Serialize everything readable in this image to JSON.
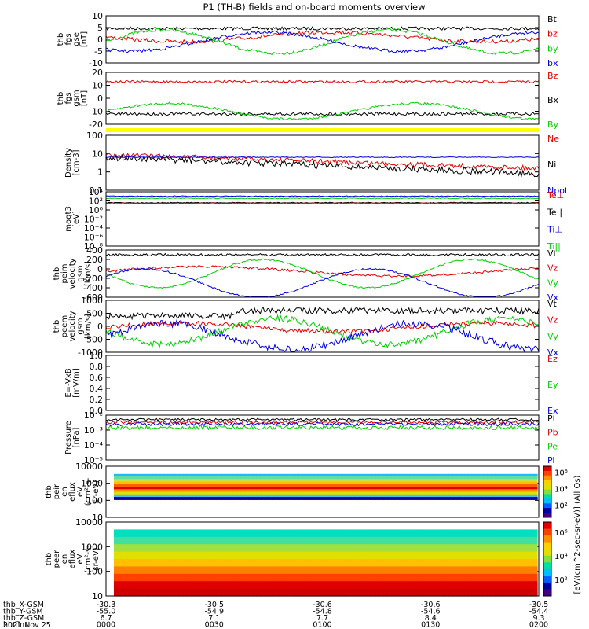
{
  "title": "P1 (TH-B) fields and on-board moments overview",
  "colors": {
    "black": "#000000",
    "red": "#e00000",
    "green": "#00d000",
    "blue": "#0000e0",
    "yellow": "#ffff00"
  },
  "chart_data": [
    {
      "type": "line",
      "ylabel": [
        "thb",
        "fgs",
        "gse",
        "[nT]"
      ],
      "yticks": [
        "10",
        "5",
        "0",
        "-5",
        "-10"
      ],
      "ylim": [
        -10,
        10
      ],
      "series": [
        {
          "name": "Bt",
          "color": "black"
        },
        {
          "name": "bz",
          "color": "red"
        },
        {
          "name": "by",
          "color": "green"
        },
        {
          "name": "bx",
          "color": "blue"
        }
      ]
    },
    {
      "type": "line",
      "ylabel": [
        "thb",
        "fgs",
        "gsm",
        "[nT]"
      ],
      "yticks": [
        "20",
        "10",
        "0",
        "-10",
        "-20"
      ],
      "ylim": [
        -20,
        20
      ],
      "series": [
        {
          "name": "Bz",
          "color": "red"
        },
        {
          "name": "Bx",
          "color": "black"
        },
        {
          "name": "By",
          "color": "green"
        }
      ]
    },
    {
      "type": "line",
      "ylabel": [
        "Density",
        "[cm-3]"
      ],
      "yticks": [
        "100",
        "10",
        "1",
        "0.1"
      ],
      "scale": "log",
      "series": [
        {
          "name": "Ne",
          "color": "red"
        },
        {
          "name": "Ni",
          "color": "black"
        },
        {
          "name": "Npot",
          "color": "blue"
        }
      ]
    },
    {
      "type": "line",
      "ylabel": [
        "moqt3",
        "[eV]"
      ],
      "yticks": [
        "10⁴",
        "10²",
        "10⁰",
        "10⁻²",
        "10⁻⁴",
        "10⁻⁶",
        "10⁻⁸"
      ],
      "scale": "log",
      "series": [
        {
          "name": "Te⊥",
          "color": "red"
        },
        {
          "name": "Te||",
          "color": "black"
        },
        {
          "name": "Ti⊥",
          "color": "blue"
        },
        {
          "name": "Ti||",
          "color": "green"
        }
      ]
    },
    {
      "type": "line",
      "ylabel": [
        "thb",
        "peim",
        "velocity",
        "gsm",
        "[km/s]"
      ],
      "yticks": [
        "400",
        "200",
        "0",
        "-200",
        "-400",
        "-600"
      ],
      "ylim": [
        -600,
        500
      ],
      "series": [
        {
          "name": "Vt",
          "color": "black"
        },
        {
          "name": "Vz",
          "color": "red"
        },
        {
          "name": "Vy",
          "color": "green"
        },
        {
          "name": "Vx",
          "color": "blue"
        }
      ]
    },
    {
      "type": "line",
      "ylabel": [
        "thb",
        "peem",
        "velocity",
        "gsm",
        "[km/s]"
      ],
      "yticks": [
        "1000",
        "500",
        "0",
        "-500",
        "-1000"
      ],
      "ylim": [
        -1000,
        1000
      ],
      "series": [
        {
          "name": "Vt",
          "color": "black"
        },
        {
          "name": "Vz",
          "color": "red"
        },
        {
          "name": "Vy",
          "color": "green"
        },
        {
          "name": "Vx",
          "color": "blue"
        }
      ]
    },
    {
      "type": "line",
      "ylabel": [
        "E=-VxB",
        "[mV/m]"
      ],
      "yticks": [
        "1.0",
        "0.8",
        "0.6",
        "0.4",
        "0.2",
        "0.0"
      ],
      "ylim": [
        0,
        1
      ],
      "series": [
        {
          "name": "Ez",
          "color": "red"
        },
        {
          "name": "Ey",
          "color": "green"
        },
        {
          "name": "Ex",
          "color": "blue"
        }
      ]
    },
    {
      "type": "line",
      "ylabel": [
        "Pressure",
        "[nPa]"
      ],
      "yticks": [
        "10⁻²",
        "10⁻³",
        "10⁻⁴",
        "10⁻⁵"
      ],
      "scale": "log",
      "series": [
        {
          "name": "Pt",
          "color": "black"
        },
        {
          "name": "Pb",
          "color": "red"
        },
        {
          "name": "Pe",
          "color": "green"
        },
        {
          "name": "Pi",
          "color": "blue"
        }
      ]
    },
    {
      "type": "heatmap",
      "ylabel": [
        "thb",
        "peir",
        "en",
        "eflux",
        "eV",
        "(cm²-s-",
        "sr-eV)"
      ],
      "yticks": [
        "10000",
        "1000",
        "100",
        "10"
      ]
    },
    {
      "type": "heatmap",
      "ylabel": [
        "thb",
        "peer",
        "en",
        "eflux",
        "eV",
        "(cm²-s-",
        "sr-eV)"
      ],
      "yticks": [
        "10000",
        "1000",
        "100",
        "10"
      ]
    }
  ],
  "colorbar": {
    "label": "[eV/(cm^2-sec-sr-eV)] (All Qs)",
    "upper_ticks": [
      "10⁶",
      "10⁴",
      "10²"
    ],
    "lower_ticks": [
      "10⁶",
      "10⁴",
      "10²"
    ]
  },
  "xaxis": {
    "rows": [
      {
        "label": "thb_X-GSM",
        "values": [
          "-30.3",
          "-30.5",
          "-30.6",
          "-30.6",
          "-30.5"
        ]
      },
      {
        "label": "thb_Y-GSM",
        "values": [
          "-55.0",
          "-54.9",
          "-54.8",
          "-54.6",
          "-54.4"
        ]
      },
      {
        "label": "thb_Z-GSM",
        "values": [
          "6.7",
          "7.1",
          "7.7",
          "8.4",
          "9.3"
        ]
      },
      {
        "label": "hhmm",
        "values": [
          "0000",
          "0030",
          "0100",
          "0130",
          "0200"
        ]
      }
    ],
    "date": "2021 Nov 25"
  }
}
